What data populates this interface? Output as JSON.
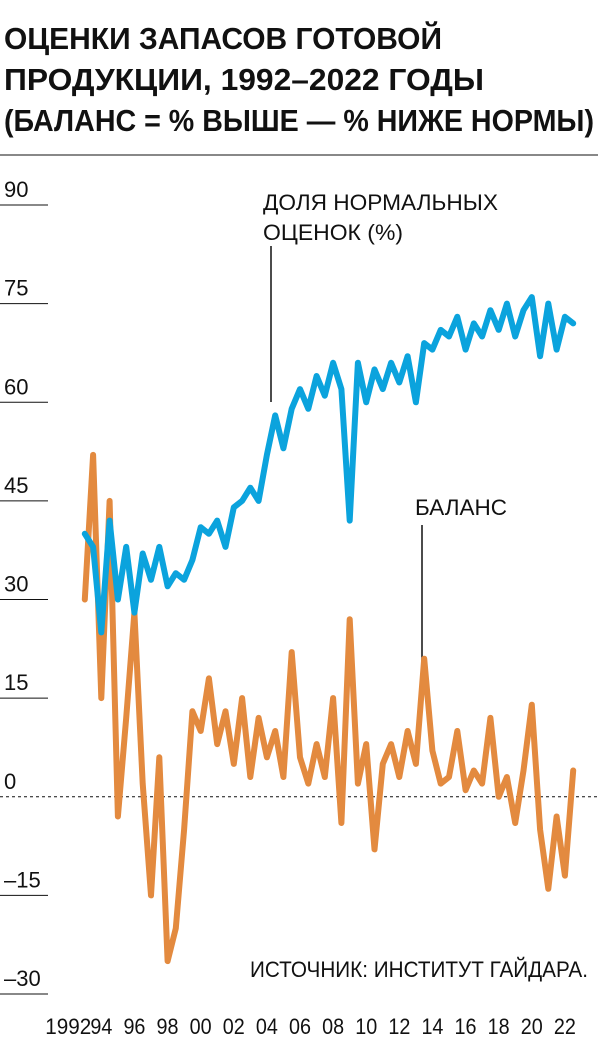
{
  "chart_data": {
    "type": "line",
    "title": [
      "ОЦЕНКИ ЗАПАСОВ ГОТОВОЙ",
      "ПРОДУКЦИИ, 1992–2022 ГОДЫ",
      "(БАЛАНС = % ВЫШЕ — % НИЖЕ НОРМЫ)"
    ],
    "annotations": [
      {
        "lines": [
          "ДОЛЯ НОРМАЛЬНЫХ",
          "ОЦЕНОК (%)"
        ]
      },
      {
        "lines": [
          "БАЛАНС"
        ]
      }
    ],
    "source": "ИСТОЧНИК: ИНСТИТУТ ГАЙДАРА.",
    "x": [
      1993,
      1993.5,
      1994,
      1994.5,
      1995,
      1995.5,
      1996,
      1996.5,
      1997,
      1997.5,
      1998,
      1998.5,
      1999,
      1999.5,
      2000,
      2000.5,
      2001,
      2001.5,
      2002,
      2002.5,
      2003,
      2003.5,
      2004,
      2004.5,
      2005,
      2005.5,
      2006,
      2006.5,
      2007,
      2007.5,
      2008,
      2008.5,
      2009,
      2009.5,
      2010,
      2010.5,
      2011,
      2011.5,
      2012,
      2012.5,
      2013,
      2013.5,
      2014,
      2014.5,
      2015,
      2015.5,
      2016,
      2016.5,
      2017,
      2017.5,
      2018,
      2018.5,
      2019,
      2019.5,
      2020,
      2020.5,
      2021,
      2021.5,
      2022,
      2022.5
    ],
    "series": [
      {
        "name": "ДОЛЯ НОРМАЛЬНЫХ ОЦЕНОК (%)",
        "color": "#0ba3dd",
        "values": [
          40,
          38,
          25,
          42,
          30,
          38,
          28,
          37,
          33,
          38,
          32,
          34,
          33,
          36,
          41,
          40,
          42,
          38,
          44,
          45,
          47,
          45,
          52,
          58,
          53,
          59,
          62,
          59,
          64,
          61,
          66,
          62,
          42,
          66,
          60,
          65,
          62,
          66,
          63,
          67,
          60,
          69,
          68,
          71,
          70,
          73,
          68,
          72,
          70,
          74,
          71,
          75,
          70,
          74,
          76,
          67,
          75,
          68,
          73,
          72
        ]
      },
      {
        "name": "БАЛАНС",
        "color": "#e38a3f",
        "values": [
          30,
          52,
          15,
          45,
          -3,
          12,
          28,
          2,
          -15,
          6,
          -25,
          -20,
          -5,
          13,
          10,
          18,
          8,
          13,
          5,
          15,
          3,
          12,
          6,
          10,
          3,
          22,
          6,
          2,
          8,
          3,
          15,
          -4,
          27,
          2,
          8,
          -8,
          5,
          8,
          3,
          10,
          5,
          21,
          7,
          2,
          3,
          10,
          1,
          4,
          2,
          12,
          0,
          3,
          -4,
          4,
          14,
          -5,
          -14,
          -3,
          -12,
          4
        ]
      }
    ],
    "xlim": [
      1988,
      2024
    ],
    "xticks": [
      1992,
      {
        "value": 1994,
        "label": "94"
      },
      {
        "value": 1996,
        "label": "96"
      },
      {
        "value": 1998,
        "label": "98"
      },
      {
        "value": 2000,
        "label": "00"
      },
      {
        "value": 2002,
        "label": "02"
      },
      {
        "value": 2004,
        "label": "04"
      },
      {
        "value": 2006,
        "label": "06"
      },
      {
        "value": 2008,
        "label": "08"
      },
      {
        "value": 2010,
        "label": "10"
      },
      {
        "value": 2012,
        "label": "12"
      },
      {
        "value": 2014,
        "label": "14"
      },
      {
        "value": 2016,
        "label": "16"
      },
      {
        "value": 2018,
        "label": "18"
      },
      {
        "value": 2020,
        "label": "20"
      },
      {
        "value": 2022,
        "label": "22"
      }
    ],
    "ylim": [
      -30,
      90
    ],
    "yticks": [
      90,
      75,
      60,
      45,
      30,
      15,
      0,
      {
        "value": -15,
        "label": "–15"
      },
      {
        "value": -30,
        "label": "–30"
      }
    ]
  }
}
